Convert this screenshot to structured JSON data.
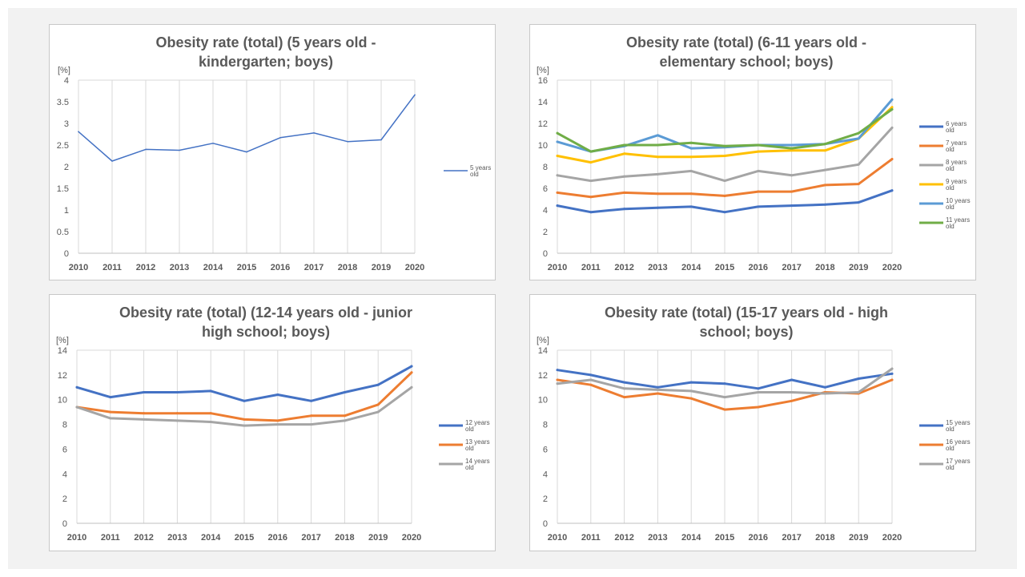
{
  "page_bg": "#f2f2f2",
  "chart_data": [
    {
      "type": "line",
      "title": "Obesity rate (total) (5 years old - kindergarten; boys)",
      "title_lines": [
        "Obesity rate (total) (5 years old -",
        "kindergarten; boys)"
      ],
      "unit_label": "[%]",
      "x": [
        "2010",
        "2011",
        "2012",
        "2013",
        "2014",
        "2015",
        "2016",
        "2017",
        "2018",
        "2019",
        "2020"
      ],
      "ylim": [
        0,
        4
      ],
      "yticks": [
        "0",
        "0.5",
        "1",
        "1.5",
        "2",
        "2.5",
        "3",
        "3.5",
        "4"
      ],
      "grid": "vertical",
      "legend_position": "right",
      "series": [
        {
          "name": "5 years old",
          "name_lines": [
            "5 years",
            "old"
          ],
          "color": "#4472c4",
          "values": [
            2.81,
            2.13,
            2.4,
            2.38,
            2.54,
            2.34,
            2.67,
            2.78,
            2.58,
            2.62,
            3.66
          ]
        }
      ]
    },
    {
      "type": "line",
      "title": "Obesity rate (total) (6-11 years old - elementary school; boys)",
      "title_lines": [
        "Obesity rate (total) (6-11 years old -",
        "elementary school; boys)"
      ],
      "unit_label": "[%]",
      "x": [
        "2010",
        "2011",
        "2012",
        "2013",
        "2014",
        "2015",
        "2016",
        "2017",
        "2018",
        "2019",
        "2020"
      ],
      "ylim": [
        0,
        16
      ],
      "yticks": [
        "0",
        "2",
        "4",
        "6",
        "8",
        "10",
        "12",
        "14",
        "16"
      ],
      "grid": "vertical",
      "legend_position": "right",
      "series": [
        {
          "name": "6 years old",
          "name_lines": [
            "6 years",
            "old"
          ],
          "color": "#4472c4",
          "values": [
            4.4,
            3.8,
            4.1,
            4.2,
            4.3,
            3.8,
            4.3,
            4.4,
            4.5,
            4.7,
            5.8
          ]
        },
        {
          "name": "7 years old",
          "name_lines": [
            "7 years",
            "old"
          ],
          "color": "#ed7d31",
          "values": [
            5.6,
            5.2,
            5.6,
            5.5,
            5.5,
            5.3,
            5.7,
            5.7,
            6.3,
            6.4,
            8.7
          ]
        },
        {
          "name": "8 years old",
          "name_lines": [
            "8 years",
            "old"
          ],
          "color": "#a5a5a5",
          "values": [
            7.2,
            6.7,
            7.1,
            7.3,
            7.6,
            6.7,
            7.6,
            7.2,
            7.7,
            8.2,
            11.6
          ]
        },
        {
          "name": "9 years old",
          "name_lines": [
            "9 years",
            "old"
          ],
          "color": "#ffc000",
          "values": [
            9.0,
            8.4,
            9.2,
            8.9,
            8.9,
            9.0,
            9.4,
            9.5,
            9.5,
            10.6,
            13.5
          ]
        },
        {
          "name": "10 years old",
          "name_lines": [
            "10 years",
            "old"
          ],
          "color": "#5b9bd5",
          "values": [
            10.3,
            9.4,
            9.9,
            10.9,
            9.7,
            9.8,
            10.0,
            10.0,
            10.1,
            10.6,
            14.2
          ]
        },
        {
          "name": "11 years old",
          "name_lines": [
            "11 years",
            "old"
          ],
          "color": "#70ad47",
          "values": [
            11.1,
            9.4,
            10.0,
            10.0,
            10.2,
            9.9,
            10.0,
            9.7,
            10.1,
            11.1,
            13.3
          ]
        }
      ]
    },
    {
      "type": "line",
      "title": "Obesity rate (total) (12-14 years old - junior high school; boys)",
      "title_lines": [
        "Obesity rate (total) (12-14 years old - junior",
        "high school; boys)"
      ],
      "unit_label": "[%]",
      "x": [
        "2010",
        "2011",
        "2012",
        "2013",
        "2014",
        "2015",
        "2016",
        "2017",
        "2018",
        "2019",
        "2020"
      ],
      "ylim": [
        0,
        14
      ],
      "yticks": [
        "0",
        "2",
        "4",
        "6",
        "8",
        "10",
        "12",
        "14"
      ],
      "grid": "vertical",
      "legend_position": "right",
      "series": [
        {
          "name": "12 years old",
          "name_lines": [
            "12 years",
            "old"
          ],
          "color": "#4472c4",
          "values": [
            11.0,
            10.2,
            10.6,
            10.6,
            10.7,
            9.9,
            10.4,
            9.9,
            10.6,
            11.2,
            12.7
          ]
        },
        {
          "name": "13 years old",
          "name_lines": [
            "13 years",
            "old"
          ],
          "color": "#ed7d31",
          "values": [
            9.4,
            9.0,
            8.9,
            8.9,
            8.9,
            8.4,
            8.3,
            8.7,
            8.7,
            9.6,
            12.2
          ]
        },
        {
          "name": "14 years old",
          "name_lines": [
            "14 years",
            "old"
          ],
          "color": "#a5a5a5",
          "values": [
            9.4,
            8.5,
            8.4,
            8.3,
            8.2,
            7.9,
            8.0,
            8.0,
            8.3,
            9.0,
            11.0
          ]
        }
      ]
    },
    {
      "type": "line",
      "title": "Obesity rate (total) (15-17 years old - high school; boys)",
      "title_lines": [
        "Obesity rate (total) (15-17 years old - high",
        "school; boys)"
      ],
      "unit_label": "[%]",
      "x": [
        "2010",
        "2011",
        "2012",
        "2013",
        "2014",
        "2015",
        "2016",
        "2017",
        "2018",
        "2019",
        "2020"
      ],
      "ylim": [
        0,
        14
      ],
      "yticks": [
        "0",
        "2",
        "4",
        "6",
        "8",
        "10",
        "12",
        "14"
      ],
      "grid": "vertical",
      "legend_position": "right",
      "series": [
        {
          "name": "15 years old",
          "name_lines": [
            "15 years",
            "old"
          ],
          "color": "#4472c4",
          "values": [
            12.4,
            12.0,
            11.4,
            11.0,
            11.4,
            11.3,
            10.9,
            11.6,
            11.0,
            11.7,
            12.1
          ]
        },
        {
          "name": "16 years old",
          "name_lines": [
            "16 years",
            "old"
          ],
          "color": "#ed7d31",
          "values": [
            11.6,
            11.2,
            10.2,
            10.5,
            10.1,
            9.2,
            9.4,
            9.9,
            10.6,
            10.5,
            11.6
          ]
        },
        {
          "name": "17 years old",
          "name_lines": [
            "17 years",
            "old"
          ],
          "color": "#a5a5a5",
          "values": [
            11.3,
            11.6,
            10.9,
            10.8,
            10.7,
            10.2,
            10.6,
            10.6,
            10.5,
            10.6,
            12.5
          ]
        }
      ]
    }
  ]
}
